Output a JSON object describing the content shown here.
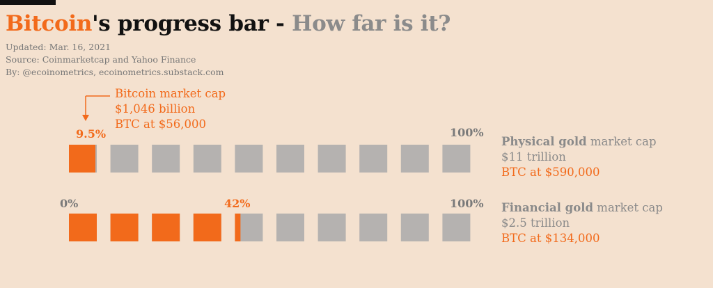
{
  "header": {
    "title_bitcoin": "Bitcoin",
    "title_mid": "'s progress bar - ",
    "title_question": "How far is it?",
    "updated": "Updated: Mar. 16, 2021",
    "source": "Source: Coinmarketcap and Yahoo Finance",
    "by": "By: @ecoinometrics, ecoinometrics.substack.com"
  },
  "annotation": {
    "line1": "Bitcoin market cap",
    "line2": "$1,046 billion",
    "line3": "BTC at $56,000"
  },
  "colors": {
    "filled": "#f26a1b",
    "empty": "#b5b2b0",
    "background": "#f4e1cf"
  },
  "chart_data": {
    "type": "bar",
    "blocks_per_bar": 10,
    "title": "Bitcoin's progress bar - How far is it?",
    "bars": [
      {
        "label_strong": "Physical gold",
        "label_rest": " market cap",
        "value_label": "$11 trillion",
        "btc_label": "BTC at $590,000",
        "progress": 9.5,
        "progress_label": "9.5%",
        "end_label": "100%",
        "start_label": ""
      },
      {
        "label_strong": "Financial gold",
        "label_rest": " market cap",
        "value_label": "$2.5 trillion",
        "btc_label": "BTC at $134,000",
        "progress": 42,
        "progress_label": "42%",
        "end_label": "100%",
        "start_label": "0%"
      }
    ]
  }
}
